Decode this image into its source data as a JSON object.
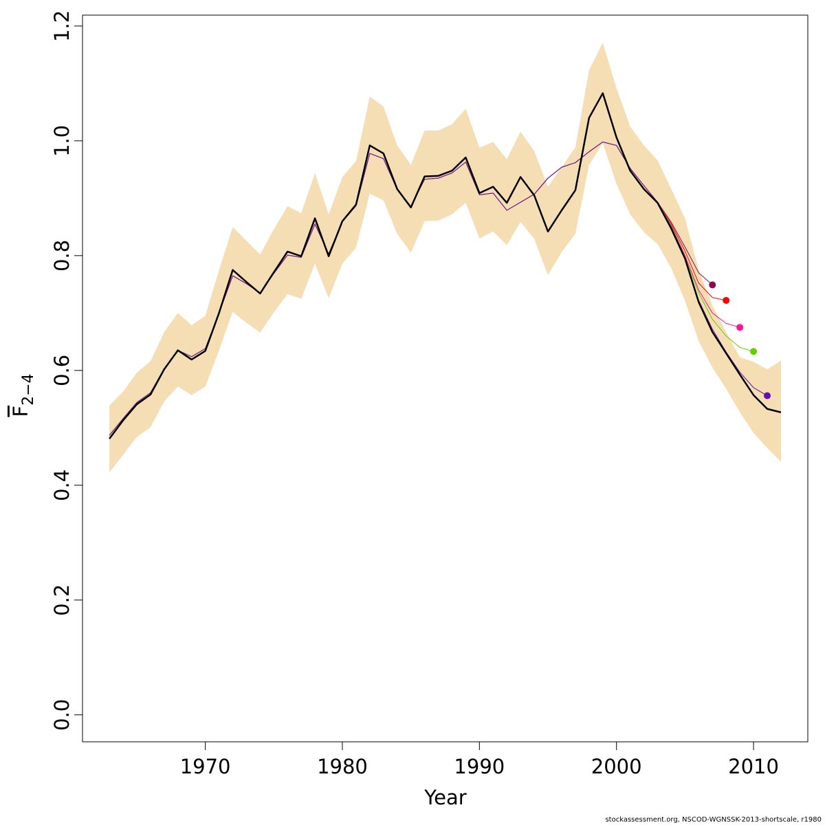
{
  "chart_data": {
    "type": "line",
    "xlabel": "Year",
    "ylabel": {
      "main": "F",
      "sub": "2−4"
    },
    "footnote": "stockassessment.org, NSCOD-WGNSSK-2013-shortscale, r1980",
    "x": [
      1963,
      1964,
      1965,
      1966,
      1967,
      1968,
      1969,
      1970,
      1971,
      1972,
      1973,
      1974,
      1975,
      1976,
      1977,
      1978,
      1979,
      1980,
      1981,
      1982,
      1983,
      1984,
      1985,
      1986,
      1987,
      1988,
      1989,
      1990,
      1991,
      1992,
      1993,
      1994,
      1995,
      1996,
      1997,
      1998,
      1999,
      2000,
      2001,
      2002,
      2003,
      2004,
      2005,
      2006,
      2007,
      2008,
      2009,
      2010,
      2011,
      2012
    ],
    "xlim": [
      1961.04,
      2013.96
    ],
    "xticks": [
      1970,
      1980,
      1990,
      2000,
      2010
    ],
    "ylim": [
      -0.047,
      1.219
    ],
    "yticks": [
      {
        "value": 0,
        "label": "0.0"
      },
      0.2,
      0.4,
      0.6,
      0.8,
      {
        "value": 1,
        "label": "1.0"
      },
      1.2
    ],
    "band": {
      "color": "#F5DEB3",
      "upper": [
        0.539,
        0.563,
        0.596,
        0.616,
        0.667,
        0.7,
        0.679,
        0.695,
        0.775,
        0.85,
        0.826,
        0.802,
        0.846,
        0.886,
        0.874,
        0.944,
        0.872,
        0.937,
        0.965,
        1.077,
        1.06,
        0.992,
        0.958,
        1.018,
        1.018,
        1.029,
        1.056,
        0.988,
        0.998,
        0.968,
        1.016,
        0.982,
        0.92,
        0.954,
        0.989,
        1.123,
        1.171,
        1.092,
        1.025,
        0.992,
        0.966,
        0.916,
        0.865,
        0.775,
        0.713,
        0.667,
        0.623,
        0.615,
        0.602,
        0.617
      ],
      "lower": [
        0.422,
        0.453,
        0.484,
        0.501,
        0.546,
        0.572,
        0.557,
        0.572,
        0.635,
        0.702,
        0.683,
        0.666,
        0.701,
        0.733,
        0.725,
        0.786,
        0.726,
        0.786,
        0.814,
        0.908,
        0.896,
        0.838,
        0.805,
        0.86,
        0.861,
        0.872,
        0.892,
        0.83,
        0.842,
        0.818,
        0.859,
        0.829,
        0.766,
        0.806,
        0.838,
        0.958,
        0.996,
        0.925,
        0.872,
        0.841,
        0.82,
        0.778,
        0.721,
        0.651,
        0.605,
        0.568,
        0.527,
        0.491,
        0.465,
        0.441
      ]
    },
    "series": [
      {
        "color": "#000000",
        "width": 2.5,
        "end_point": false,
        "values": [
          0.481,
          0.513,
          0.541,
          0.558,
          0.602,
          0.635,
          0.619,
          0.634,
          0.7,
          0.775,
          0.754,
          0.734,
          0.771,
          0.807,
          0.799,
          0.865,
          0.799,
          0.86,
          0.889,
          0.992,
          0.978,
          0.916,
          0.884,
          0.938,
          0.939,
          0.948,
          0.971,
          0.909,
          0.92,
          0.892,
          0.937,
          0.905,
          0.842,
          0.879,
          0.914,
          1.04,
          1.083,
          1.006,
          0.948,
          0.916,
          0.892,
          0.847,
          0.795,
          0.719,
          0.667,
          0.63,
          0.593,
          0.557,
          0.533,
          0.527
        ]
      },
      {
        "color": "#8B0A50",
        "width": 1,
        "end_point": true,
        "values": [
          0.487,
          0.516,
          0.544,
          0.561,
          0.603,
          0.635,
          0.624,
          0.638,
          0.7,
          0.765,
          0.751,
          0.735,
          0.769,
          0.801,
          0.797,
          0.855,
          0.803,
          0.859,
          0.887,
          0.978,
          0.969,
          0.915,
          0.886,
          0.933,
          0.935,
          0.944,
          0.963,
          0.906,
          0.909,
          0.879,
          0.893,
          0.907,
          0.935,
          0.954,
          0.962,
          0.981,
          0.998,
          0.992,
          0.952,
          0.922,
          0.893,
          0.858,
          0.815,
          0.77,
          0.749,
          null,
          null,
          null,
          null,
          null
        ]
      },
      {
        "color": "#FF0000",
        "width": 1,
        "end_point": true,
        "values": [
          0.487,
          0.516,
          0.544,
          0.561,
          0.603,
          0.635,
          0.624,
          0.638,
          0.7,
          0.765,
          0.751,
          0.735,
          0.769,
          0.801,
          0.797,
          0.855,
          0.803,
          0.859,
          0.887,
          0.978,
          0.969,
          0.915,
          0.886,
          0.933,
          0.935,
          0.944,
          0.963,
          0.906,
          0.909,
          0.879,
          0.893,
          0.907,
          0.935,
          0.954,
          0.962,
          0.981,
          0.998,
          0.992,
          0.952,
          0.922,
          0.893,
          0.855,
          0.808,
          0.752,
          0.727,
          0.722,
          null,
          null,
          null,
          null
        ]
      },
      {
        "color": "#FF1493",
        "width": 1,
        "end_point": true,
        "values": [
          0.487,
          0.516,
          0.544,
          0.561,
          0.603,
          0.635,
          0.624,
          0.638,
          0.7,
          0.765,
          0.751,
          0.735,
          0.769,
          0.801,
          0.797,
          0.855,
          0.803,
          0.859,
          0.887,
          0.978,
          0.969,
          0.915,
          0.886,
          0.933,
          0.935,
          0.944,
          0.963,
          0.906,
          0.909,
          0.879,
          0.893,
          0.907,
          0.935,
          0.954,
          0.962,
          0.981,
          0.998,
          0.992,
          0.952,
          0.922,
          0.893,
          0.853,
          0.8,
          0.74,
          0.7,
          0.682,
          0.675,
          null,
          null,
          null
        ]
      },
      {
        "color": "#66CD00",
        "width": 1,
        "end_point": true,
        "values": [
          0.487,
          0.516,
          0.544,
          0.561,
          0.603,
          0.635,
          0.624,
          0.638,
          0.7,
          0.765,
          0.751,
          0.735,
          0.769,
          0.801,
          0.797,
          0.855,
          0.803,
          0.859,
          0.887,
          0.978,
          0.969,
          0.915,
          0.886,
          0.933,
          0.935,
          0.944,
          0.963,
          0.906,
          0.909,
          0.879,
          0.893,
          0.907,
          0.935,
          0.954,
          0.962,
          0.981,
          0.998,
          0.992,
          0.952,
          0.922,
          0.893,
          0.852,
          0.797,
          0.735,
          0.689,
          0.66,
          0.64,
          0.633,
          null,
          null
        ]
      },
      {
        "color": "#6A0DAD",
        "width": 1,
        "end_point": true,
        "values": [
          0.487,
          0.516,
          0.544,
          0.561,
          0.603,
          0.635,
          0.624,
          0.638,
          0.7,
          0.765,
          0.751,
          0.735,
          0.769,
          0.801,
          0.797,
          0.855,
          0.803,
          0.859,
          0.887,
          0.978,
          0.969,
          0.915,
          0.886,
          0.933,
          0.935,
          0.944,
          0.963,
          0.906,
          0.909,
          0.879,
          0.893,
          0.907,
          0.935,
          0.954,
          0.962,
          0.981,
          0.998,
          0.992,
          0.952,
          0.922,
          0.893,
          0.85,
          0.793,
          0.722,
          0.672,
          0.632,
          0.597,
          0.57,
          0.556,
          null
        ]
      }
    ]
  }
}
